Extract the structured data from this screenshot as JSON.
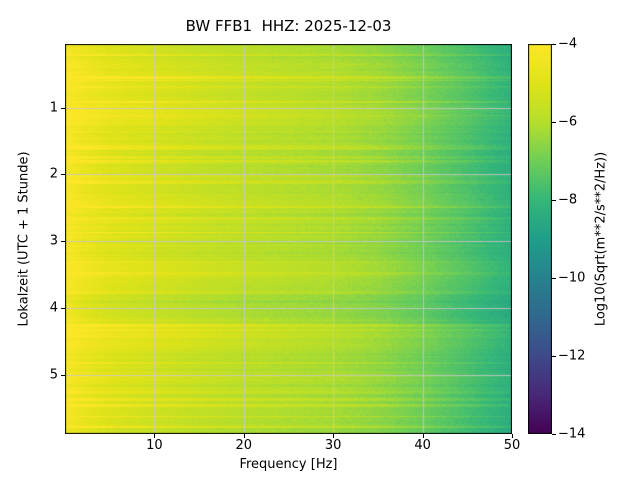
{
  "chart_data": {
    "type": "heatmap",
    "title": "BW FFB1  HHZ: 2025-12-03",
    "xlabel": "Frequency [Hz]",
    "ylabel": "Lokalzeit (UTC + 1 Stunde)",
    "colorbar_label": "Log10(Sqrt(m**2/s**2/Hz))",
    "xlim": [
      0,
      50
    ],
    "ylim": [
      0.05,
      5.88
    ],
    "y_direction": "down",
    "clim": [
      -14,
      -4
    ],
    "grid_lines": true,
    "grid_color": "#c8c8c8",
    "colormap": "viridis",
    "colormap_stops": [
      [
        0.0,
        "#440154"
      ],
      [
        0.1,
        "#482878"
      ],
      [
        0.2,
        "#3e4a89"
      ],
      [
        0.3,
        "#31688e"
      ],
      [
        0.4,
        "#26828e"
      ],
      [
        0.5,
        "#1f9e89"
      ],
      [
        0.6,
        "#35b779"
      ],
      [
        0.7,
        "#6ece58"
      ],
      [
        0.8,
        "#b5de2b"
      ],
      [
        0.9,
        "#dfe318"
      ],
      [
        1.0,
        "#fde725"
      ]
    ],
    "x_ticks": [
      {
        "v": 10,
        "label": "10"
      },
      {
        "v": 20,
        "label": "20"
      },
      {
        "v": 30,
        "label": "30"
      },
      {
        "v": 40,
        "label": "40"
      },
      {
        "v": 50,
        "label": "50"
      }
    ],
    "y_ticks": [
      {
        "v": 1,
        "label": "1"
      },
      {
        "v": 2,
        "label": "2"
      },
      {
        "v": 3,
        "label": "3"
      },
      {
        "v": 4,
        "label": "4"
      },
      {
        "v": 5,
        "label": "5"
      }
    ],
    "colorbar_ticks": [
      {
        "v": -4,
        "label": "−4"
      },
      {
        "v": -6,
        "label": "−6"
      },
      {
        "v": -8,
        "label": "−8"
      },
      {
        "v": -10,
        "label": "−10"
      },
      {
        "v": -12,
        "label": "−12"
      },
      {
        "v": -14,
        "label": "−14"
      }
    ],
    "grid": {
      "freqs": [
        0.5,
        2,
        5,
        10,
        15,
        20,
        25,
        30,
        35,
        40,
        45,
        50
      ],
      "times": [
        0.05,
        0.4,
        0.7,
        1.0,
        1.3,
        1.7,
        2.0,
        2.3,
        2.7,
        3.1,
        3.4,
        3.8,
        4.1,
        4.4,
        4.8,
        5.1,
        5.5,
        5.88
      ],
      "values": [
        [
          -4.3,
          -4.7,
          -5.1,
          -5.45,
          -5.75,
          -5.95,
          -6.1,
          -6.25,
          -6.55,
          -7.05,
          -7.7,
          -8.4
        ],
        [
          -4.1,
          -4.4,
          -4.8,
          -5.1,
          -5.4,
          -5.65,
          -5.85,
          -6.0,
          -6.3,
          -6.8,
          -7.45,
          -8.2
        ],
        [
          -4.1,
          -4.4,
          -4.8,
          -5.1,
          -5.4,
          -5.65,
          -5.85,
          -6.0,
          -6.3,
          -6.8,
          -7.45,
          -8.2
        ],
        [
          -3.9,
          -4.1,
          -4.45,
          -4.75,
          -5.05,
          -5.35,
          -5.6,
          -5.85,
          -6.15,
          -6.65,
          -7.3,
          -8.05
        ],
        [
          -4.1,
          -4.4,
          -4.8,
          -5.1,
          -5.4,
          -5.65,
          -5.85,
          -6.0,
          -6.3,
          -6.8,
          -7.45,
          -8.2
        ],
        [
          -4.3,
          -4.7,
          -5.1,
          -5.45,
          -5.75,
          -5.95,
          -6.1,
          -6.25,
          -6.55,
          -7.05,
          -7.7,
          -8.4
        ],
        [
          -4.3,
          -4.7,
          -5.1,
          -5.45,
          -5.75,
          -5.95,
          -6.1,
          -6.25,
          -6.55,
          -7.05,
          -7.7,
          -8.4
        ],
        [
          -4.1,
          -4.4,
          -4.8,
          -5.1,
          -5.4,
          -5.65,
          -5.85,
          -6.0,
          -6.3,
          -6.8,
          -7.45,
          -8.2
        ],
        [
          -4.1,
          -4.4,
          -4.8,
          -5.1,
          -5.4,
          -5.65,
          -5.85,
          -6.0,
          -6.3,
          -6.8,
          -7.45,
          -8.2
        ],
        [
          -4.3,
          -4.7,
          -5.1,
          -5.45,
          -5.75,
          -5.95,
          -6.1,
          -6.25,
          -6.55,
          -7.05,
          -7.7,
          -8.4
        ],
        [
          -4.1,
          -4.4,
          -4.8,
          -5.1,
          -5.4,
          -5.65,
          -5.85,
          -6.0,
          -6.3,
          -6.8,
          -7.45,
          -8.2
        ],
        [
          -4.3,
          -4.7,
          -5.1,
          -5.45,
          -5.75,
          -5.95,
          -6.1,
          -6.25,
          -6.55,
          -7.05,
          -7.7,
          -8.4
        ],
        [
          -4.5,
          -5.0,
          -5.4,
          -5.7,
          -6.0,
          -6.2,
          -6.35,
          -6.5,
          -6.8,
          -7.3,
          -8.0,
          -8.6
        ],
        [
          -3.9,
          -4.1,
          -4.45,
          -4.75,
          -5.05,
          -5.35,
          -5.6,
          -5.85,
          -6.15,
          -6.65,
          -7.3,
          -8.05
        ],
        [
          -4.3,
          -4.7,
          -5.1,
          -5.45,
          -5.75,
          -5.95,
          -6.1,
          -6.25,
          -6.55,
          -7.05,
          -7.7,
          -8.4
        ],
        [
          -4.1,
          -4.4,
          -4.8,
          -5.1,
          -5.4,
          -5.65,
          -5.85,
          -6.0,
          -6.3,
          -6.8,
          -7.45,
          -8.2
        ],
        [
          -4.3,
          -4.7,
          -5.1,
          -5.45,
          -5.75,
          -5.95,
          -6.1,
          -6.25,
          -6.55,
          -7.05,
          -7.7,
          -8.4
        ],
        [
          -4.3,
          -4.7,
          -5.1,
          -5.45,
          -5.75,
          -5.95,
          -6.1,
          -6.25,
          -6.55,
          -7.05,
          -7.7,
          -8.4
        ]
      ]
    },
    "texture": {
      "seed": 42,
      "row_streak_probability": 0.18,
      "row_streak_max": 0.75,
      "row_dark_probability": 0.12,
      "row_dark_max": 0.35,
      "pixel_noise": 0.38,
      "streak_freq_decay": 0.55
    }
  }
}
